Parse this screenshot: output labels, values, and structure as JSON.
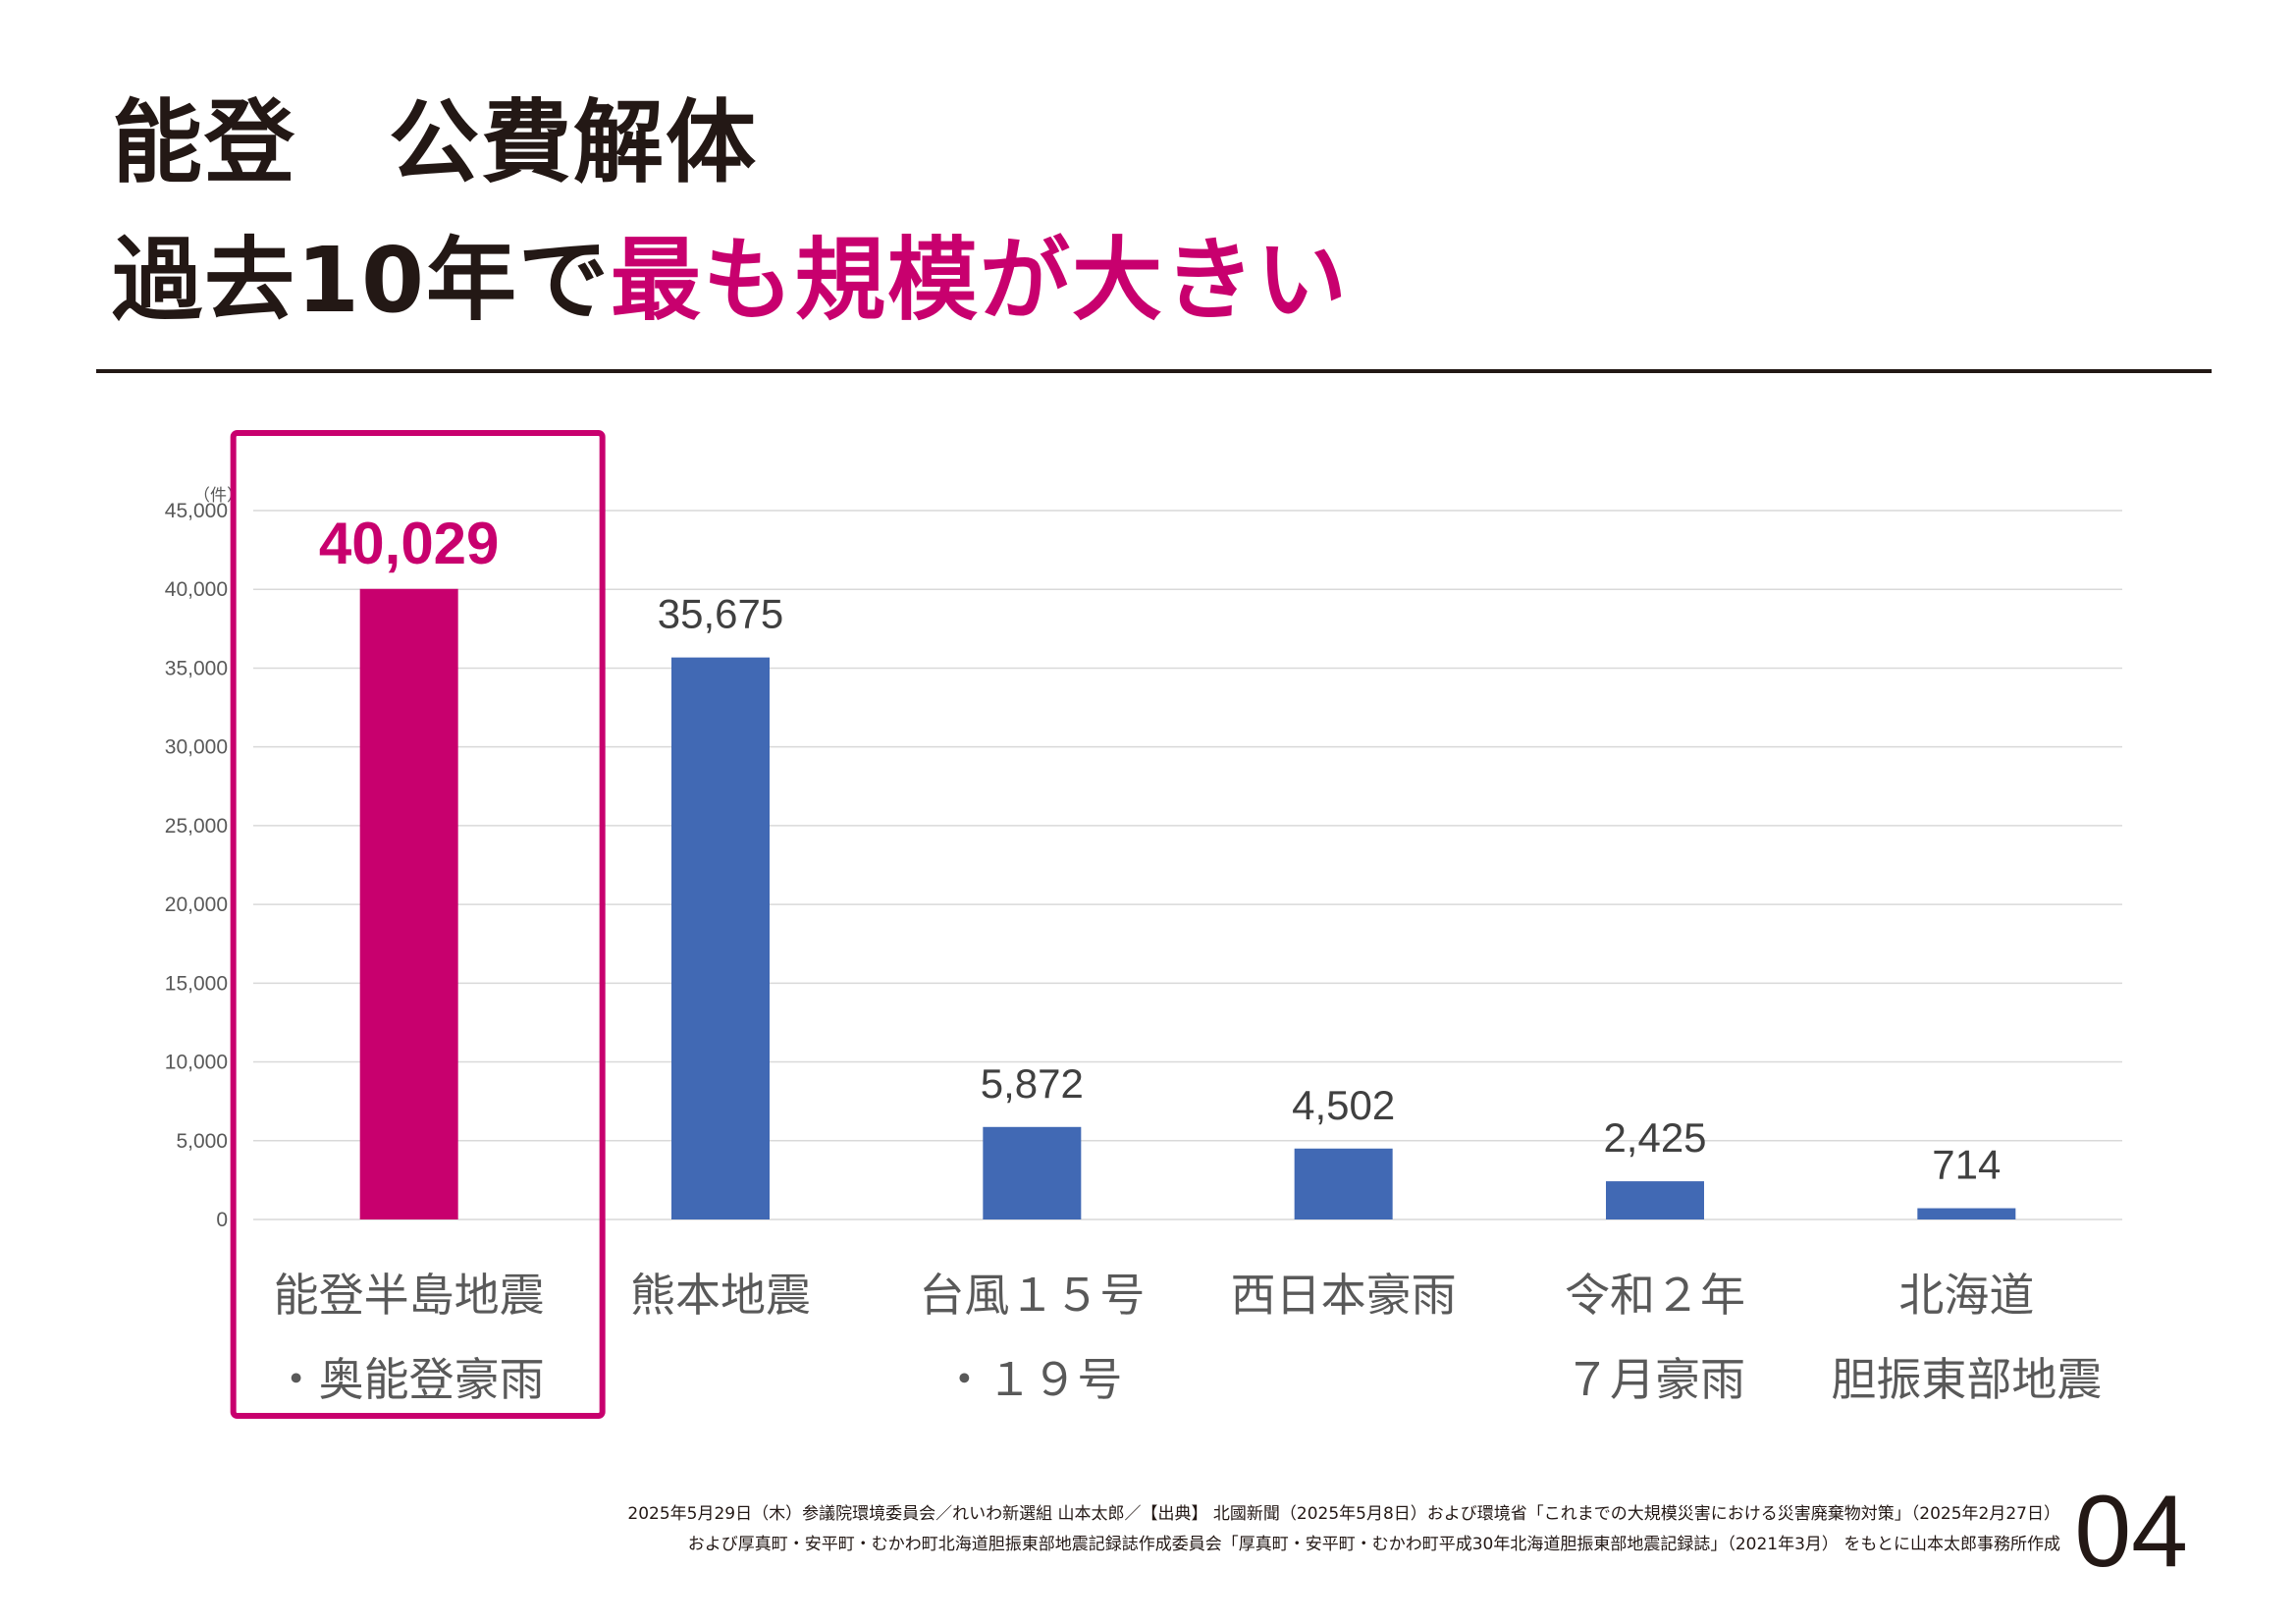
{
  "title": {
    "line1": "能登　公費解体",
    "line2_prefix": "過去10年で",
    "line2_highlight": "最も規模が大きい"
  },
  "chart_data": {
    "type": "bar",
    "unit_label": "（件）",
    "ylim": [
      0,
      45000
    ],
    "yticks": [
      "0",
      "5,000",
      "10,000",
      "15,000",
      "20,000",
      "25,000",
      "30,000",
      "35,000",
      "40,000",
      "45,000"
    ],
    "grid": true,
    "categories": [
      [
        "能登半島地震",
        "・奥能登豪雨"
      ],
      [
        "熊本地震"
      ],
      [
        "台風１５号",
        "・１９号"
      ],
      [
        "西日本豪雨"
      ],
      [
        "令和２年",
        "７月豪雨"
      ],
      [
        "北海道",
        "胆振東部地震"
      ]
    ],
    "values": [
      40029,
      35675,
      5872,
      4502,
      2425,
      714
    ],
    "value_labels": [
      "40,029",
      "35,675",
      "5,872",
      "4,502",
      "2,425",
      "714"
    ],
    "highlight_index": 0,
    "colors": {
      "highlight": "#c8006e",
      "bar": "#4169b4"
    }
  },
  "footer": {
    "line1": "2025年5月29日（木）参議院環境委員会／れいわ新選組 山本太郎／【出典】 北國新聞（2025年5月8日）および環境省「これまでの大規模災害における災害廃棄物対策」（2025年2月27日）",
    "line2": "および厚真町・安平町・むかわ町北海道胆振東部地震記録誌作成委員会「厚真町・安平町・むかわ町平成30年北海道胆振東部地震記録誌」（2021年3月） をもとに山本太郎事務所作成"
  },
  "page_number": "04"
}
